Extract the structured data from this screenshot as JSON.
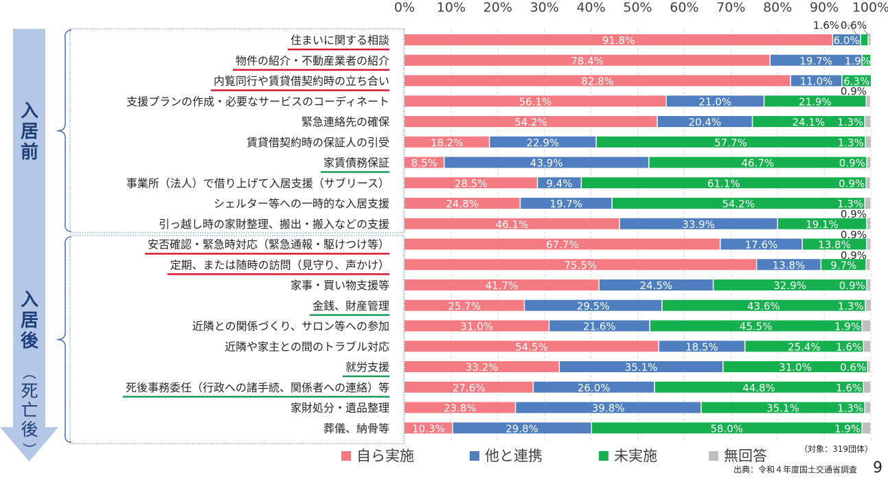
{
  "chart_data": {
    "type": "bar",
    "orientation": "horizontal",
    "stacked": true,
    "x_ticks": [
      "0%",
      "10%",
      "20%",
      "30%",
      "40%",
      "50%",
      "60%",
      "70%",
      "80%",
      "90%",
      "100%"
    ],
    "xlim": [
      0,
      100
    ],
    "grid": true,
    "groups": [
      {
        "label": "入居前",
        "range": [
          0,
          9
        ]
      },
      {
        "label": "入居後（死亡後）",
        "range": [
          10,
          19
        ]
      }
    ],
    "categories": [
      "住まいに関する相談",
      "物件の紹介・不動産業者の紹介",
      "内覧同行や賃貸借契約時の立ち合い",
      "支援プランの作成・必要なサービスのコーディネート",
      "緊急連絡先の確保",
      "賃貸借契約時の保証人の引受",
      "家賃債務保証",
      "事業所（法人）で借り上げて入居支援（サブリース）",
      "シェルター等への一時的な入居支援",
      "引っ越し時の家財整理、搬出・搬入などの支援",
      "安否確認・緊急時対応（緊急通報・駆けつけ等）",
      "定期、または随時の訪問（見守り、声かけ）",
      "家事・買い物支援等",
      "金銭、財産管理",
      "近隣との関係づくり、サロン等への参加",
      "近隣や家主との間のトラブル対応",
      "就労支援",
      "死後事務委任（行政への諸手続、関係者への連絡）等",
      "家財処分・遺品整理",
      "葬儀、納骨等"
    ],
    "underlines": [
      "red",
      "red",
      "red",
      null,
      null,
      null,
      "green",
      null,
      null,
      null,
      "red",
      "red",
      null,
      "green",
      null,
      null,
      "green",
      "green",
      null,
      null
    ],
    "series": [
      {
        "name": "自ら実施",
        "color": "#f47b82",
        "values": [
          91.8,
          78.4,
          82.8,
          56.1,
          54.2,
          18.2,
          8.5,
          28.5,
          24.8,
          46.1,
          67.7,
          75.5,
          41.7,
          25.7,
          31.0,
          54.5,
          33.2,
          27.6,
          23.8,
          10.3
        ],
        "labels": [
          "91.8%",
          "78.4%",
          "82.8%",
          "56.1%",
          "54.2%",
          "18.2%",
          "8.5%",
          "28.5%",
          "24.8%",
          "46.1%",
          "67.7%",
          "75.5%",
          "41.7%",
          "25.7%",
          "31.0%",
          "54.5%",
          "33.2%",
          "27.6%",
          "23.8%",
          "10.3%"
        ]
      },
      {
        "name": "他と連携",
        "color": "#4f7fbf",
        "values": [
          6.0,
          19.7,
          11.0,
          21.0,
          20.4,
          22.9,
          43.9,
          9.4,
          19.7,
          33.9,
          17.6,
          13.8,
          24.5,
          29.5,
          21.6,
          18.5,
          35.1,
          26.0,
          39.8,
          29.8
        ],
        "labels": [
          "6.0%",
          "19.7%",
          "11.0%",
          "21.0%",
          "20.4%",
          "22.9%",
          "43.9%",
          "9.4%",
          "19.7%",
          "33.9%",
          "17.6%",
          "13.8%",
          "24.5%",
          "29.5%",
          "21.6%",
          "18.5%",
          "35.1%",
          "26.0%",
          "39.8%",
          "29.8%"
        ]
      },
      {
        "name": "未実施",
        "color": "#17b04f",
        "values": [
          1.6,
          1.9,
          6.3,
          21.9,
          24.1,
          57.7,
          46.7,
          61.1,
          54.2,
          19.1,
          13.8,
          9.7,
          32.9,
          43.6,
          45.5,
          25.4,
          31.0,
          44.8,
          35.1,
          58.0
        ],
        "labels": [
          "",
          "1.9%",
          "6.3%",
          "21.9%",
          "24.1%",
          "57.7%",
          "46.7%",
          "61.1%",
          "54.2%",
          "19.1%",
          "13.8%",
          "9.7%",
          "32.9%",
          "43.6%",
          "45.5%",
          "25.4%",
          "31.0%",
          "44.8%",
          "35.1%",
          "58.0%"
        ]
      },
      {
        "name": "無回答",
        "color": "#bfbfbf",
        "values": [
          0.6,
          0.0,
          0.0,
          0.9,
          1.3,
          1.3,
          0.9,
          0.9,
          1.3,
          0.9,
          0.9,
          0.9,
          0.9,
          1.3,
          1.9,
          1.6,
          0.6,
          1.6,
          1.3,
          1.9
        ],
        "labels": [
          "",
          "",
          "",
          "",
          "1.3%",
          "1.3%",
          "0.9%",
          "0.9%",
          "1.3%",
          "",
          "",
          "",
          "0.9%",
          "1.3%",
          "1.9%",
          "1.6%",
          "0.6%",
          "1.6%",
          "1.3%",
          "1.9%"
        ]
      }
    ],
    "callouts": [
      {
        "row": 0,
        "text": "1.6%"
      },
      {
        "row": 0,
        "text": "0.6%"
      },
      {
        "row": 3,
        "text": "0.9%"
      },
      {
        "row": 9,
        "text": "0.9%"
      },
      {
        "row": 10,
        "text": "0.9%"
      },
      {
        "row": 11,
        "text": "0.9%"
      }
    ],
    "legend": {
      "position": "bottom",
      "entries": [
        "自ら実施",
        "他と連携",
        "未実施",
        "無回答"
      ]
    },
    "note": "（対象：319団体）",
    "source": "出典：令和４年度国土交通省調査",
    "page_number": "9"
  }
}
